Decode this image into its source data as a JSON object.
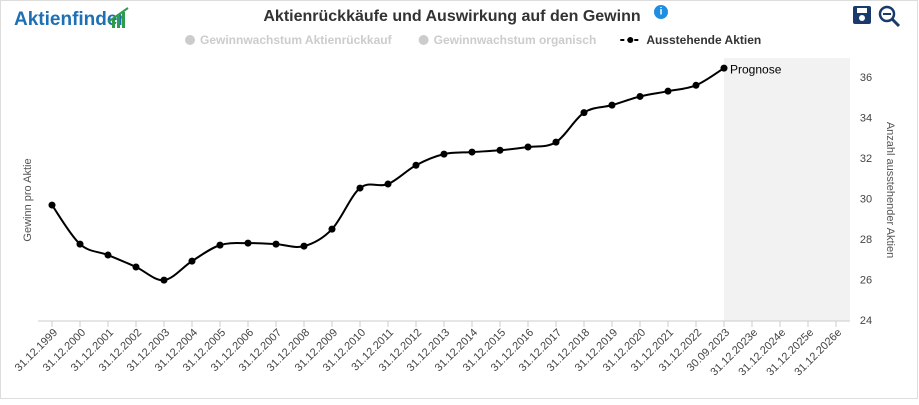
{
  "brand": "Aktienfinder",
  "chart_data": {
    "type": "line",
    "title": "Aktienrückkäufe und Auswirkung auf den Gewinn",
    "y_label": "Gewinn pro Aktie",
    "y2_label": "Anzahl ausstehender Aktien",
    "annotation": "Prognose",
    "legend_hidden": [
      "Gewinnwachstum Aktienrückkauf",
      "Gewinnwachstum organisch"
    ],
    "categories": [
      "31.12.1999",
      "31.12.2000",
      "31.12.2001",
      "31.12.2002",
      "31.12.2003",
      "31.12.2004",
      "31.12.2005",
      "31.12.2006",
      "31.12.2007",
      "31.12.2008",
      "31.12.2009",
      "31.12.2010",
      "31.12.2011",
      "31.12.2012",
      "31.12.2013",
      "31.12.2014",
      "31.12.2015",
      "31.12.2016",
      "31.12.2017",
      "31.12.2018",
      "31.12.2019",
      "31.12.2020",
      "31.12.2021",
      "31.12.2022",
      "30.09.2023",
      "31.12.2023e",
      "31.12.2024e",
      "31.12.2025e",
      "31.12.2026e"
    ],
    "series": [
      {
        "name": "Ausstehende Aktien",
        "color": "#000000",
        "axis": "y2",
        "values": [
          29.73,
          27.8,
          27.26,
          26.67,
          26.02,
          26.96,
          27.75,
          27.85,
          27.8,
          27.7,
          28.54,
          30.57,
          30.77,
          31.7,
          32.25,
          32.35,
          32.44,
          32.6,
          32.84,
          34.3,
          34.67,
          35.1,
          35.36,
          35.65,
          36.5,
          null,
          null,
          null,
          null
        ]
      }
    ],
    "y2lim": [
      24,
      37
    ],
    "y2ticks": [
      24,
      26,
      28,
      30,
      32,
      34,
      36
    ],
    "forecast_from": "30.09.2023"
  }
}
